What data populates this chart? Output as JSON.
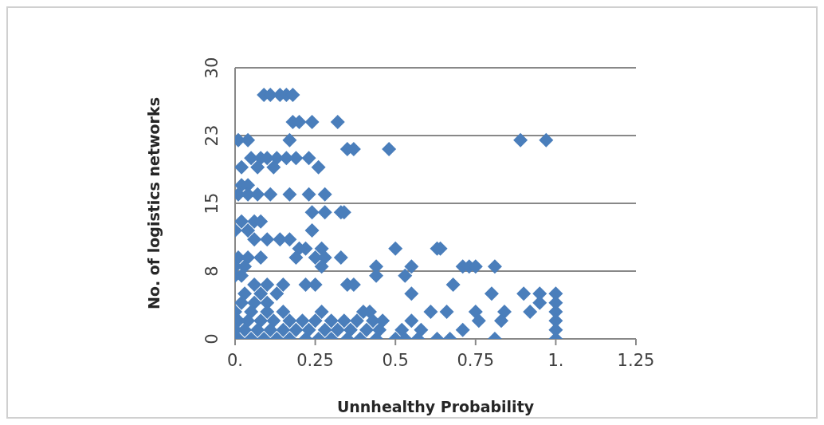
{
  "chart_data": {
    "type": "scatter",
    "xlabel": "Unnhealthy Probability",
    "ylabel": "No. of logistics networks",
    "x": [
      0.09,
      0.11,
      0.14,
      0.16,
      0.18,
      0.18,
      0.2,
      0.24,
      0.32,
      0.01,
      0.04,
      0.17,
      0.89,
      0.97,
      0.35,
      0.37,
      0.48,
      0.05,
      0.08,
      0.1,
      0.13,
      0.16,
      0.19,
      0.23,
      0.02,
      0.07,
      0.12,
      0.26,
      0.02,
      0.04,
      0.01,
      0.04,
      0.07,
      0.11,
      0.17,
      0.23,
      0.28,
      0.24,
      0.28,
      0.33,
      0.34,
      0.02,
      0.06,
      0.08,
      0.0,
      0.04,
      0.24,
      0.06,
      0.1,
      0.14,
      0.17,
      0.22,
      0.27,
      0.5,
      0.63,
      0.64,
      0.2,
      0.01,
      0.04,
      0.08,
      0.19,
      0.25,
      0.28,
      0.33,
      0.0,
      0.03,
      0.27,
      0.44,
      0.55,
      0.71,
      0.73,
      0.75,
      0.81,
      0.0,
      0.02,
      0.44,
      0.53,
      0.06,
      0.1,
      0.15,
      0.22,
      0.25,
      0.35,
      0.37,
      0.68,
      0.03,
      0.08,
      0.13,
      0.55,
      0.8,
      0.9,
      0.95,
      1.0,
      0.02,
      0.06,
      0.1,
      0.95,
      1.0,
      0.0,
      0.05,
      0.1,
      0.15,
      0.27,
      0.4,
      0.42,
      0.61,
      0.66,
      0.75,
      0.84,
      0.92,
      1.0,
      0.01,
      0.04,
      0.08,
      0.12,
      0.17,
      0.21,
      0.25,
      0.3,
      0.34,
      0.38,
      0.43,
      0.46,
      0.55,
      0.76,
      0.83,
      1.0,
      0.0,
      0.03,
      0.07,
      0.11,
      0.15,
      0.19,
      0.23,
      0.28,
      0.32,
      0.36,
      0.41,
      0.45,
      0.52,
      0.58,
      0.71,
      1.0,
      0.01,
      0.05,
      0.09,
      0.13,
      0.17,
      0.22,
      0.26,
      0.3,
      0.35,
      0.39,
      0.44,
      0.5,
      0.53,
      0.57,
      0.63,
      0.67,
      0.81,
      1.0
    ],
    "values": [
      27,
      27,
      27,
      27,
      27,
      24,
      24,
      24,
      24,
      22,
      22,
      22,
      22,
      22,
      21,
      21,
      21,
      20,
      20,
      20,
      20,
      20,
      20,
      20,
      19,
      19,
      19,
      19,
      17,
      17,
      16,
      16,
      16,
      16,
      16,
      16,
      16,
      14,
      14,
      14,
      14,
      13,
      13,
      13,
      12,
      12,
      12,
      11,
      11,
      11,
      11,
      10,
      10,
      10,
      10,
      10,
      10,
      9,
      9,
      9,
      9,
      9,
      9,
      9,
      8,
      8,
      8,
      8,
      8,
      8,
      8,
      8,
      8,
      7,
      7,
      7,
      7,
      6,
      6,
      6,
      6,
      6,
      6,
      6,
      6,
      5,
      5,
      5,
      5,
      5,
      5,
      5,
      5,
      4,
      4,
      4,
      4,
      4,
      3,
      3,
      3,
      3,
      3,
      3,
      3,
      3,
      3,
      3,
      3,
      3,
      3,
      2,
      2,
      2,
      2,
      2,
      2,
      2,
      2,
      2,
      2,
      2,
      2,
      2,
      2,
      2,
      2,
      1,
      1,
      1,
      1,
      1,
      1,
      1,
      1,
      1,
      1,
      1,
      1,
      1,
      1,
      1,
      1,
      0,
      0,
      0,
      0,
      0,
      0,
      0,
      0,
      0,
      0,
      0,
      0,
      0,
      0,
      0,
      0,
      0,
      0
    ],
    "color": "#4a7ebb",
    "marker": "diamond",
    "grid": "y",
    "xlim": [
      0,
      1.25
    ],
    "xticks": [
      {
        "value": 0,
        "label": "0."
      },
      0.25,
      0.5,
      0.75,
      {
        "value": 1,
        "label": "1."
      },
      1.25
    ],
    "ylim": [
      0,
      30
    ],
    "yticks": [
      0,
      {
        "value": 7.5,
        "label": "8"
      },
      15,
      {
        "value": 22.5,
        "label": "23"
      },
      30
    ]
  }
}
